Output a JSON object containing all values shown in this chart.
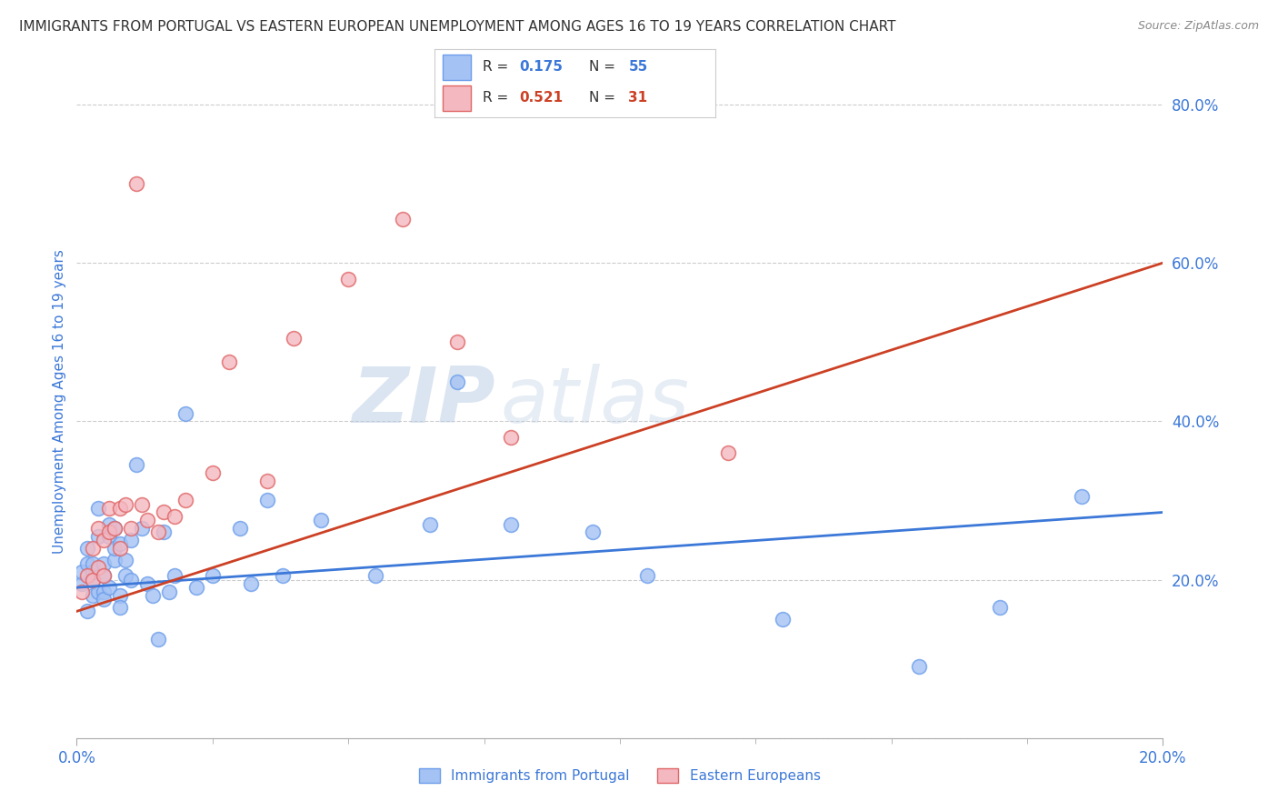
{
  "title": "IMMIGRANTS FROM PORTUGAL VS EASTERN EUROPEAN UNEMPLOYMENT AMONG AGES 16 TO 19 YEARS CORRELATION CHART",
  "source": "Source: ZipAtlas.com",
  "ylabel": "Unemployment Among Ages 16 to 19 years",
  "xlim": [
    0.0,
    0.2
  ],
  "ylim": [
    0.0,
    0.85
  ],
  "yticks": [
    0.0,
    0.2,
    0.4,
    0.6,
    0.8
  ],
  "ytick_labels": [
    "",
    "20.0%",
    "40.0%",
    "60.0%",
    "80.0%"
  ],
  "xticks": [
    0.0,
    0.2
  ],
  "xtick_labels": [
    "0.0%",
    "20.0%"
  ],
  "blue_color": "#a4c2f4",
  "pink_color": "#f4b8c1",
  "blue_edge_color": "#6d9eeb",
  "pink_edge_color": "#e06666",
  "blue_line_color": "#3c78d8",
  "pink_line_color": "#cc4125",
  "legend_label_blue": "R = 0.175   N = 55",
  "legend_label_pink": "R = 0.521   N = 31",
  "legend_r_blue": "R = 0.175",
  "legend_n_blue": "N = 55",
  "legend_r_pink": "R = 0.521",
  "legend_n_pink": "N = 31",
  "watermark_zip": "ZIP",
  "watermark_atlas": "atlas",
  "blue_scatter_x": [
    0.001,
    0.001,
    0.002,
    0.002,
    0.002,
    0.003,
    0.003,
    0.003,
    0.003,
    0.004,
    0.004,
    0.004,
    0.005,
    0.005,
    0.005,
    0.005,
    0.006,
    0.006,
    0.006,
    0.007,
    0.007,
    0.007,
    0.008,
    0.008,
    0.008,
    0.009,
    0.009,
    0.01,
    0.01,
    0.011,
    0.012,
    0.013,
    0.014,
    0.015,
    0.016,
    0.017,
    0.018,
    0.02,
    0.022,
    0.025,
    0.03,
    0.032,
    0.035,
    0.038,
    0.045,
    0.055,
    0.065,
    0.07,
    0.08,
    0.095,
    0.105,
    0.13,
    0.155,
    0.17,
    0.185
  ],
  "blue_scatter_y": [
    0.195,
    0.21,
    0.22,
    0.24,
    0.16,
    0.2,
    0.21,
    0.22,
    0.18,
    0.29,
    0.255,
    0.185,
    0.205,
    0.22,
    0.185,
    0.175,
    0.255,
    0.27,
    0.19,
    0.265,
    0.225,
    0.24,
    0.245,
    0.18,
    0.165,
    0.225,
    0.205,
    0.2,
    0.25,
    0.345,
    0.265,
    0.195,
    0.18,
    0.125,
    0.26,
    0.185,
    0.205,
    0.41,
    0.19,
    0.205,
    0.265,
    0.195,
    0.3,
    0.205,
    0.275,
    0.205,
    0.27,
    0.45,
    0.27,
    0.26,
    0.205,
    0.15,
    0.09,
    0.165,
    0.305
  ],
  "pink_scatter_x": [
    0.001,
    0.002,
    0.003,
    0.003,
    0.004,
    0.004,
    0.005,
    0.005,
    0.006,
    0.006,
    0.007,
    0.008,
    0.008,
    0.009,
    0.01,
    0.011,
    0.012,
    0.013,
    0.015,
    0.016,
    0.018,
    0.02,
    0.025,
    0.028,
    0.035,
    0.04,
    0.05,
    0.06,
    0.07,
    0.08,
    0.12
  ],
  "pink_scatter_y": [
    0.185,
    0.205,
    0.24,
    0.2,
    0.265,
    0.215,
    0.205,
    0.25,
    0.26,
    0.29,
    0.265,
    0.29,
    0.24,
    0.295,
    0.265,
    0.7,
    0.295,
    0.275,
    0.26,
    0.285,
    0.28,
    0.3,
    0.335,
    0.475,
    0.325,
    0.505,
    0.58,
    0.655,
    0.5,
    0.38,
    0.36
  ],
  "blue_trend_x": [
    0.0,
    0.2
  ],
  "blue_trend_y": [
    0.19,
    0.285
  ],
  "pink_trend_x": [
    0.0,
    0.2
  ],
  "pink_trend_y": [
    0.16,
    0.6
  ],
  "background_color": "#ffffff",
  "grid_color": "#cccccc",
  "title_color": "#333333",
  "tick_color": "#3c78d8",
  "title_fontsize": 11,
  "source_fontsize": 9
}
